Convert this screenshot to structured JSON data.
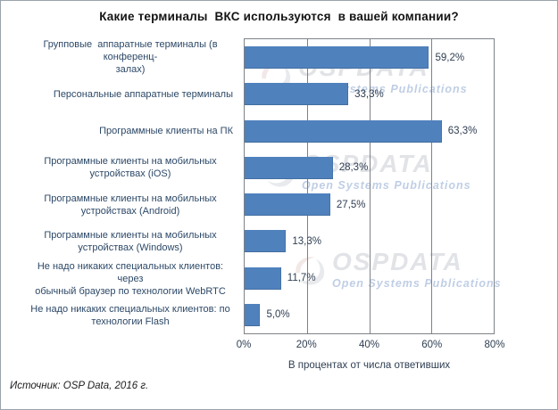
{
  "chart_data": {
    "type": "bar",
    "orientation": "horizontal",
    "title": "Какие терминалы  ВКС используются  в вашей компании?",
    "categories": [
      "Групповые  аппаратные терминалы (в конференц-\nзалах)",
      "Персональные аппаратные терминалы",
      "Программные клиенты на ПК",
      "Программные клиенты на мобильных\nустройствах (iOS)",
      "Программные клиенты на мобильных\nустройствах (Android)",
      "Программные клиенты на мобильных\nустройствах (Windows)",
      "Не надо никаких специальных клиентов: через\nобычный браузер по технологии WebRTC",
      "Не надо никаких специальных клиентов: по\nтехнологии Flash"
    ],
    "values": [
      59.2,
      33.3,
      63.3,
      28.3,
      27.5,
      13.3,
      11.7,
      5.0
    ],
    "value_labels": [
      "59,2%",
      "33,3%",
      "63,3%",
      "28,3%",
      "27,5%",
      "13,3%",
      "11,7%",
      "5,0%"
    ],
    "xlim": [
      0,
      80
    ],
    "xticks": [
      "0%",
      "20%",
      "40%",
      "60%",
      "80%"
    ],
    "grid": "vertical-only",
    "legend": "none",
    "bar_color": "#4f81bd",
    "xlabel": "В процентах от числа ответивших",
    "source": "Источник: OSP Data, 2016 г.",
    "watermark": {
      "brand": "OSPDATA",
      "tagline": "Open Systems Publications"
    }
  }
}
